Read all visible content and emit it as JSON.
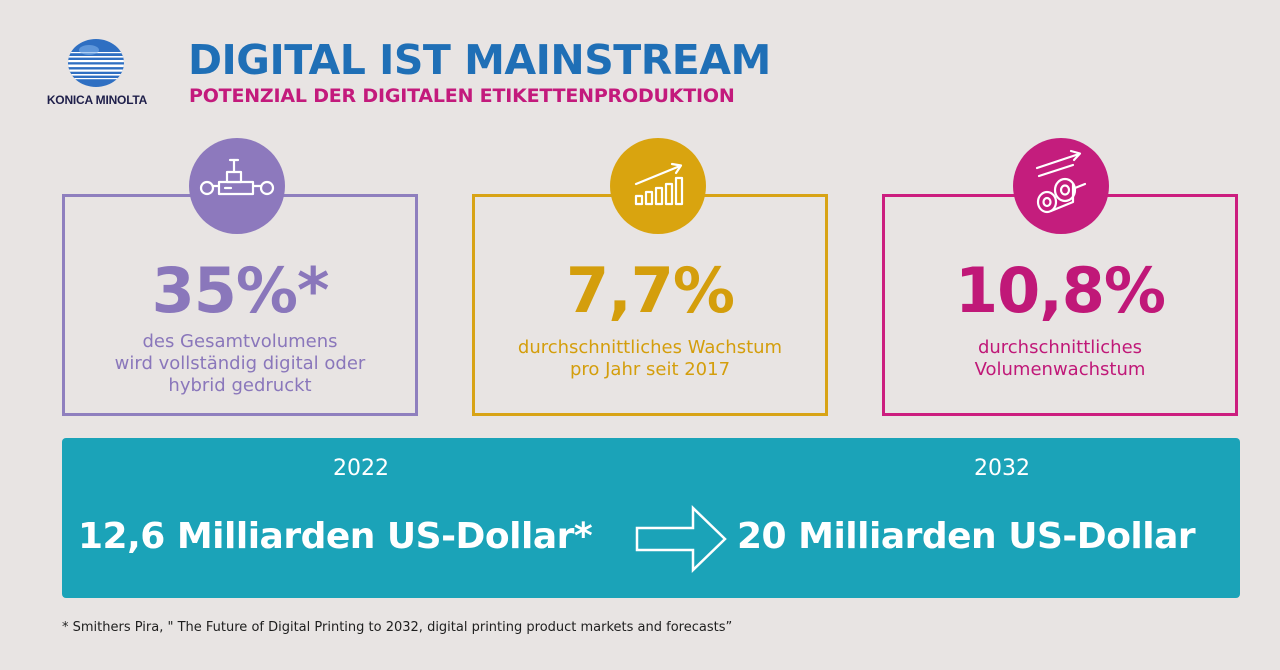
{
  "logo": {
    "text": "KONICA MINOLTA"
  },
  "header": {
    "title": "DIGITAL IST MAINSTREAM",
    "subtitle": "POTENZIAL DER DIGITALEN ETIKETTENPRODUKTION"
  },
  "cards": [
    {
      "icon": "printing-press-icon",
      "stat": "35%*",
      "lines": [
        "des Gesamtvolumens",
        "wird vollständig digital oder",
        "hybrid gedruckt"
      ],
      "color": "#8a77bb"
    },
    {
      "icon": "growth-chart-icon",
      "stat": "7,7%",
      "lines": [
        "durchschnittliches Wachstum",
        "pro Jahr seit 2017"
      ],
      "color": "#d49e0c"
    },
    {
      "icon": "label-rolls-icon",
      "stat": "10,8%",
      "lines": [
        "durchschnittliches",
        "Volumenwachstum"
      ],
      "color": "#c01878"
    }
  ],
  "market": {
    "year_from": "2022",
    "year_to": "2032",
    "amount_from": "12,6 Milliarden US-Dollar*",
    "amount_to": "20 Milliarden US-Dollar",
    "arrow_icon": "arrow-right-icon",
    "color": "#1ba3b8"
  },
  "footnote": "* Smithers Pira, \" The Future of Digital Printing to 2032, digital printing product markets and forecasts”"
}
